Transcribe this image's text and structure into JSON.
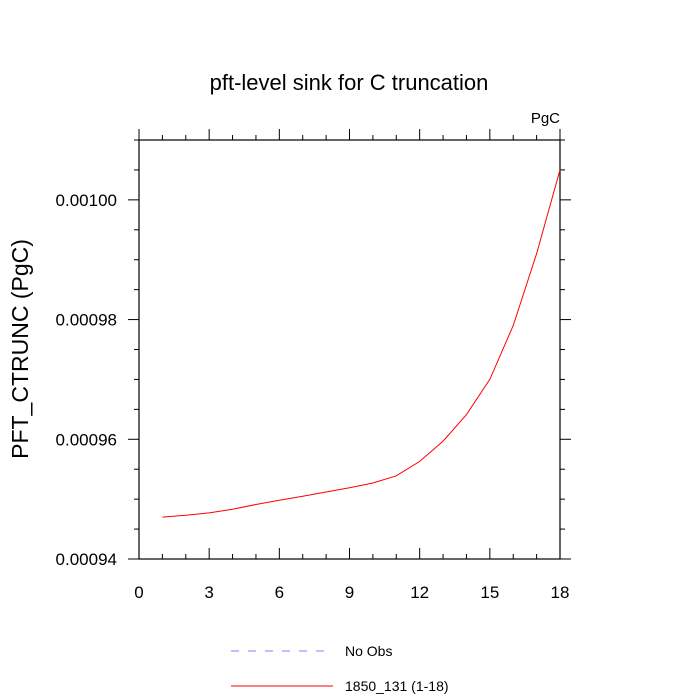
{
  "chart_data": {
    "type": "line",
    "title": "pft-level sink for C truncation",
    "units_label": "PgC",
    "ylabel": "PFT_CTRUNC  (PgC)",
    "xlabel": "",
    "xlim": [
      0,
      18
    ],
    "ylim": [
      0.00094,
      0.00101
    ],
    "x_ticks": [
      0,
      3,
      6,
      9,
      12,
      15,
      18
    ],
    "x_tick_labels": [
      "0",
      "3",
      "6",
      "9",
      "12",
      "15",
      "18"
    ],
    "y_ticks": [
      0.00094,
      0.00096,
      0.00098,
      0.001
    ],
    "y_tick_labels": [
      "0.00094",
      "0.00096",
      "0.00098",
      "0.00100"
    ],
    "grid": false,
    "legend_position": "bottom",
    "series": [
      {
        "name": "No Obs",
        "color": "#8080ff",
        "dash": "dashed",
        "x": [],
        "y": []
      },
      {
        "name": "1850_131 (1-18)",
        "color": "#ff0000",
        "dash": "solid",
        "x": [
          1,
          2,
          3,
          4,
          5,
          6,
          7,
          8,
          9,
          10,
          11,
          12,
          13,
          14,
          15,
          16,
          17,
          18
        ],
        "y": [
          0.000947,
          0.0009473,
          0.0009477,
          0.0009483,
          0.0009491,
          0.0009498,
          0.0009505,
          0.0009512,
          0.0009519,
          0.0009527,
          0.0009539,
          0.0009563,
          0.0009597,
          0.0009641,
          0.00097,
          0.000979,
          0.000991,
          0.001005
        ]
      }
    ]
  }
}
